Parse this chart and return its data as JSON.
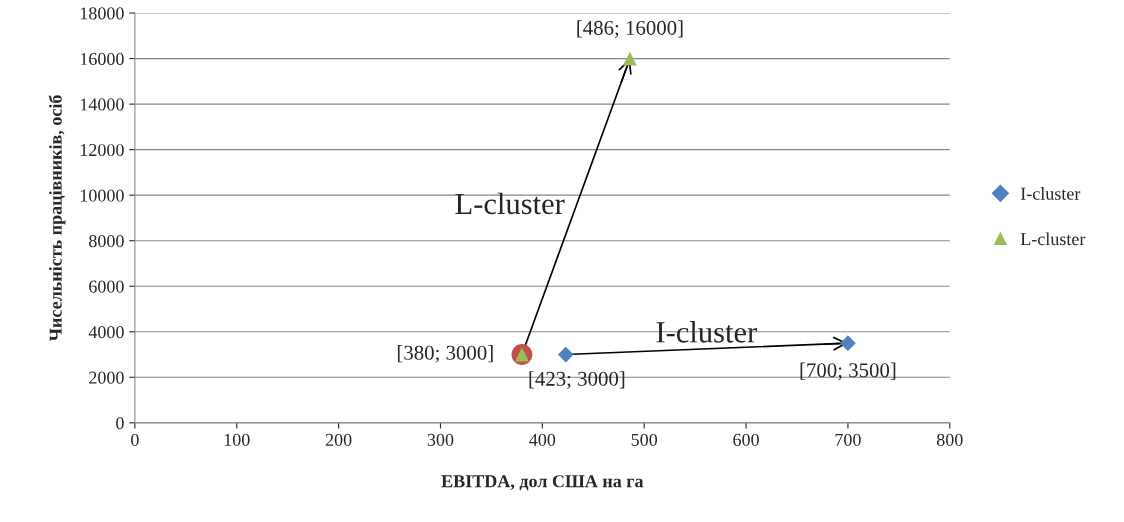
{
  "chart_data": {
    "type": "scatter",
    "xlabel": "EBITDA, дол США на га",
    "ylabel": "Чисельність працівників, осіб",
    "xlim": [
      0,
      800
    ],
    "xticks": [
      0,
      100,
      200,
      300,
      400,
      500,
      600,
      700,
      800
    ],
    "ylim": [
      0,
      18000
    ],
    "yticks": [
      0,
      2000,
      4000,
      6000,
      8000,
      10000,
      12000,
      14000,
      16000,
      18000
    ],
    "grid": "y",
    "legend": "right",
    "series": [
      {
        "name": "I-cluster",
        "type": "line",
        "color": "#4f81bd",
        "marker": "diamond",
        "x": [
          423,
          700
        ],
        "values": [
          3000,
          3500
        ]
      },
      {
        "color": "#c0504d",
        "marker": "circle",
        "x": [
          380
        ],
        "values": [
          3000
        ]
      },
      {
        "name": "L-cluster",
        "type": "line",
        "color": "#9bbb59",
        "marker": "triangle",
        "x": [
          380,
          486
        ],
        "values": [
          3000,
          16000
        ]
      }
    ],
    "annotations": [
      {
        "text": "[486; 16000]",
        "x": 486,
        "y": 16000
      },
      {
        "text": "[380; 3000]",
        "x": 380,
        "y": 3000
      },
      {
        "text": "[423; 3000]",
        "x": 423,
        "y": 3000
      },
      {
        "text": "[700; 3500]",
        "x": 700,
        "y": 3500
      },
      {
        "text": "L-cluster",
        "x": 433,
        "y": 9500
      },
      {
        "text": "I-cluster",
        "x": 561,
        "y": 3250
      }
    ]
  }
}
